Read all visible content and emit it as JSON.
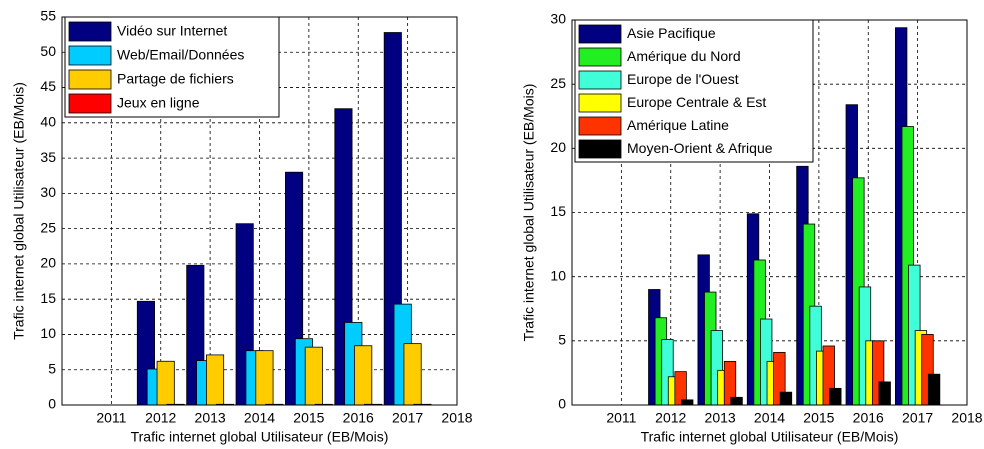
{
  "chart_data": [
    {
      "type": "bar",
      "xlabel": "Trafic internet global Utilisateur (EB/Mois)",
      "ylabel": "Trafic internet global Utilisateur (EB/Mois)",
      "x": [
        2012,
        2013,
        2014,
        2015,
        2016,
        2017
      ],
      "series": [
        {
          "name": "Vidéo sur Internet",
          "color": "#000080",
          "values": [
            14.7,
            19.8,
            25.7,
            33,
            42,
            52.8
          ]
        },
        {
          "name": "Web/Email/Données",
          "color": "#00ccff",
          "values": [
            5.1,
            6.3,
            7.7,
            9.4,
            11.7,
            14.3
          ]
        },
        {
          "name": "Partage de fichiers",
          "color": "#ffcc00",
          "values": [
            6.2,
            7.1,
            7.7,
            8.2,
            8.4,
            8.7
          ]
        },
        {
          "name": "Jeux en ligne",
          "color": "#ff0000",
          "values": [
            0.1,
            0.1,
            0.1,
            0.1,
            0.1,
            0.1
          ]
        }
      ],
      "xlim": [
        2010,
        2018
      ],
      "xticks": [
        2011,
        2012,
        2013,
        2014,
        2015,
        2016,
        2017,
        2018
      ],
      "ylim": [
        0,
        55
      ],
      "yticks": [
        0,
        5,
        10,
        15,
        20,
        25,
        30,
        35,
        40,
        45,
        50,
        55
      ],
      "grid": true,
      "legend": "upper left"
    },
    {
      "type": "bar",
      "xlabel": "Trafic internet global Utilisateur (EB/Mois)",
      "ylabel": "Trafic internet global Utilisateur (EB/Mois)",
      "x": [
        2012,
        2013,
        2014,
        2015,
        2016,
        2017
      ],
      "series": [
        {
          "name": "Asie Pacifique",
          "color": "#000080",
          "values": [
            9.0,
            11.7,
            14.9,
            18.6,
            23.4,
            29.4
          ]
        },
        {
          "name": "Amérique du Nord",
          "color": "#22ee22",
          "values": [
            6.8,
            8.8,
            11.3,
            14.1,
            17.7,
            21.7
          ]
        },
        {
          "name": "Europe de l'Ouest",
          "color": "#40ffd8",
          "values": [
            5.1,
            5.8,
            6.7,
            7.7,
            9.2,
            10.9
          ]
        },
        {
          "name": "Europe Centrale & Est",
          "color": "#ffff00",
          "values": [
            2.2,
            2.7,
            3.4,
            4.2,
            5.0,
            5.8
          ]
        },
        {
          "name": "Amérique Latine",
          "color": "#ff3300",
          "values": [
            2.6,
            3.4,
            4.1,
            4.6,
            5.0,
            5.5
          ]
        },
        {
          "name": "Moyen-Orient & Afrique",
          "color": "#000000",
          "values": [
            0.4,
            0.6,
            1.0,
            1.3,
            1.8,
            2.4
          ]
        }
      ],
      "xlim": [
        2010,
        2018
      ],
      "xticks": [
        2011,
        2012,
        2013,
        2014,
        2015,
        2016,
        2017,
        2018
      ],
      "ylim": [
        0,
        30
      ],
      "yticks": [
        0,
        5,
        10,
        15,
        20,
        25,
        30
      ],
      "grid": true,
      "legend": "upper left"
    }
  ]
}
